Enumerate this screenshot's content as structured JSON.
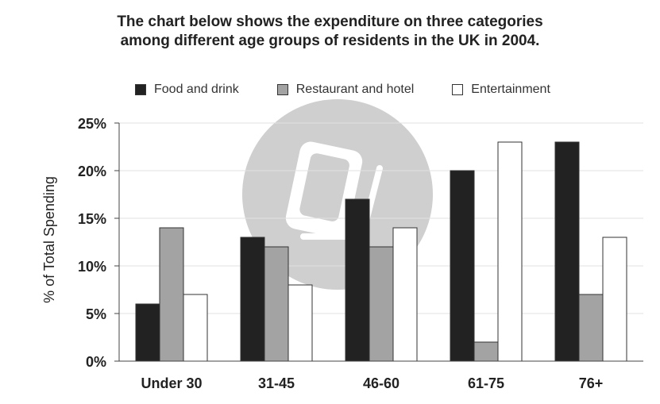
{
  "title_line1": "The chart below shows the expenditure on three categories",
  "title_line2": "among different age groups of residents in the UK in 2004.",
  "chart_data": {
    "type": "bar",
    "title": "The chart below shows the expenditure on three categories among different age groups of residents in the UK in 2004.",
    "xlabel": "",
    "ylabel": "% of Total Spending",
    "ylim": [
      0,
      25
    ],
    "yticks": [
      0,
      5,
      10,
      15,
      20,
      25
    ],
    "ytick_labels": [
      "0%",
      "5%",
      "10%",
      "15%",
      "20%",
      "25%"
    ],
    "categories": [
      "Under 30",
      "31-45",
      "46-60",
      "61-75",
      "76+"
    ],
    "series": [
      {
        "name": "Food and drink",
        "color": "#222222",
        "values": [
          6,
          13,
          17,
          20,
          23
        ]
      },
      {
        "name": "Restaurant and hotel",
        "color": "#a3a3a3",
        "values": [
          14,
          12,
          12,
          2,
          7
        ]
      },
      {
        "name": "Entertainment",
        "color": "#ffffff",
        "values": [
          7,
          8,
          14,
          23,
          13
        ]
      }
    ],
    "legend_position": "top",
    "grid": true,
    "watermark": "book-icon"
  }
}
